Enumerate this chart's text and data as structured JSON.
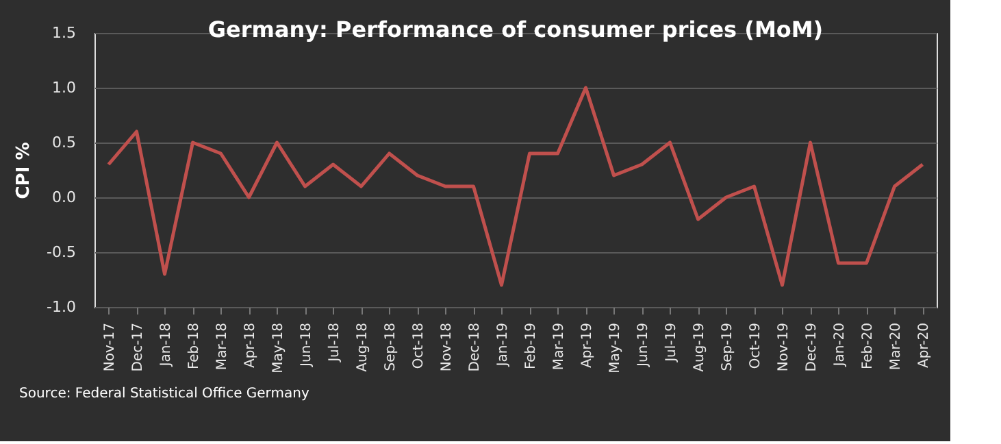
{
  "chart_data": {
    "type": "line",
    "title": "Germany: Performance of consumer prices (MoM)",
    "ylabel": "CPI %",
    "categories": [
      "Nov-17",
      "Dec-17",
      "Jan-18",
      "Feb-18",
      "Mar-18",
      "Apr-18",
      "May-18",
      "Jun-18",
      "Jul-18",
      "Aug-18",
      "Sep-18",
      "Oct-18",
      "Nov-18",
      "Dec-18",
      "Jan-19",
      "Feb-19",
      "Mar-19",
      "Apr-19",
      "May-19",
      "Jun-19",
      "Jul-19",
      "Aug-19",
      "Sep-19",
      "Oct-19",
      "Nov-19",
      "Dec-19",
      "Jan-20",
      "Feb-20",
      "Mar-20",
      "Apr-20"
    ],
    "series": [
      {
        "color": "#c0504d",
        "values": [
          0.3,
          0.6,
          -0.7,
          0.5,
          0.4,
          0.0,
          0.5,
          0.1,
          0.3,
          0.1,
          0.4,
          0.2,
          0.1,
          0.1,
          -0.8,
          0.4,
          0.4,
          1.0,
          0.2,
          0.3,
          0.5,
          -0.2,
          0.0,
          0.1,
          -0.8,
          0.5,
          -0.6,
          -0.6,
          0.1,
          0.3
        ]
      }
    ],
    "ylim": [
      -1.0,
      1.5
    ],
    "yticks": [
      {
        "value": -1.0,
        "label": "-1.0"
      },
      {
        "value": -0.5,
        "label": "-0.5"
      },
      {
        "value": 0.0,
        "label": "0.0"
      },
      {
        "value": 0.5,
        "label": "0.5"
      },
      {
        "value": 1.0,
        "label": "1.0"
      },
      {
        "value": 1.5,
        "label": "1.5"
      }
    ],
    "grid": "y",
    "marker": "none",
    "line_style": "solid",
    "annotations": [
      "Source: Federal Statistical Office Germany"
    ]
  }
}
